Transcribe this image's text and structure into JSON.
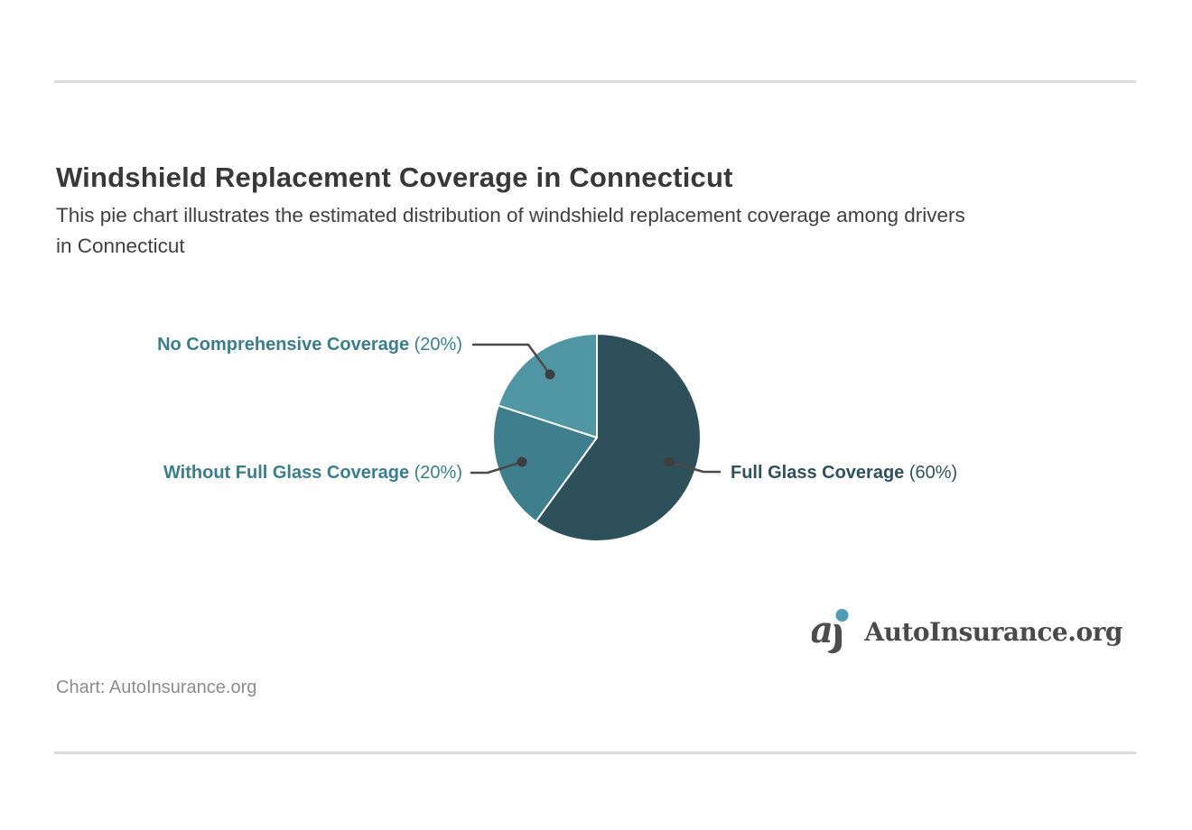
{
  "page": {
    "title": "Windshield Replacement Coverage in Connecticut",
    "subtitle": "This pie chart illustrates the estimated distribution of windshield replacement coverage among drivers in Connecticut",
    "subtitle_lines": [
      "This pie chart illustrates the estimated distribution of windshield replacement coverage among drivers",
      "in Connecticut"
    ],
    "credit": "Chart: AutoInsurance.org",
    "brand": {
      "name": "AutoInsurance.org",
      "icon": "autoinsurance-logo-icon",
      "icon_dot_color": "#4d9bb5",
      "icon_letter_color": "#4d4d4d",
      "text_color": "#4a4a4a"
    },
    "divider_color": "#dcdcdc"
  },
  "chart_data": {
    "type": "pie",
    "title": "Windshield Replacement Coverage in Connecticut",
    "unit": "%",
    "start_angle_deg": 0,
    "direction": "clockwise",
    "legend_position": "none",
    "leader_line_color": "#4a4a4a",
    "leader_dot_color": "#3e3e3e",
    "slices": [
      {
        "label": "Full Glass Coverage",
        "value": 60,
        "display": "(60%)",
        "color": "#2d505b",
        "label_color": "#2f515c",
        "label_side": "right"
      },
      {
        "label": "Without Full Glass Coverage",
        "value": 20,
        "display": "(20%)",
        "color": "#3f7e8d",
        "label_color": "#3a7e8e",
        "label_side": "left"
      },
      {
        "label": "No Comprehensive Coverage",
        "value": 20,
        "display": "(20%)",
        "color": "#5096a5",
        "label_color": "#3a7e8e",
        "label_side": "left"
      }
    ]
  }
}
